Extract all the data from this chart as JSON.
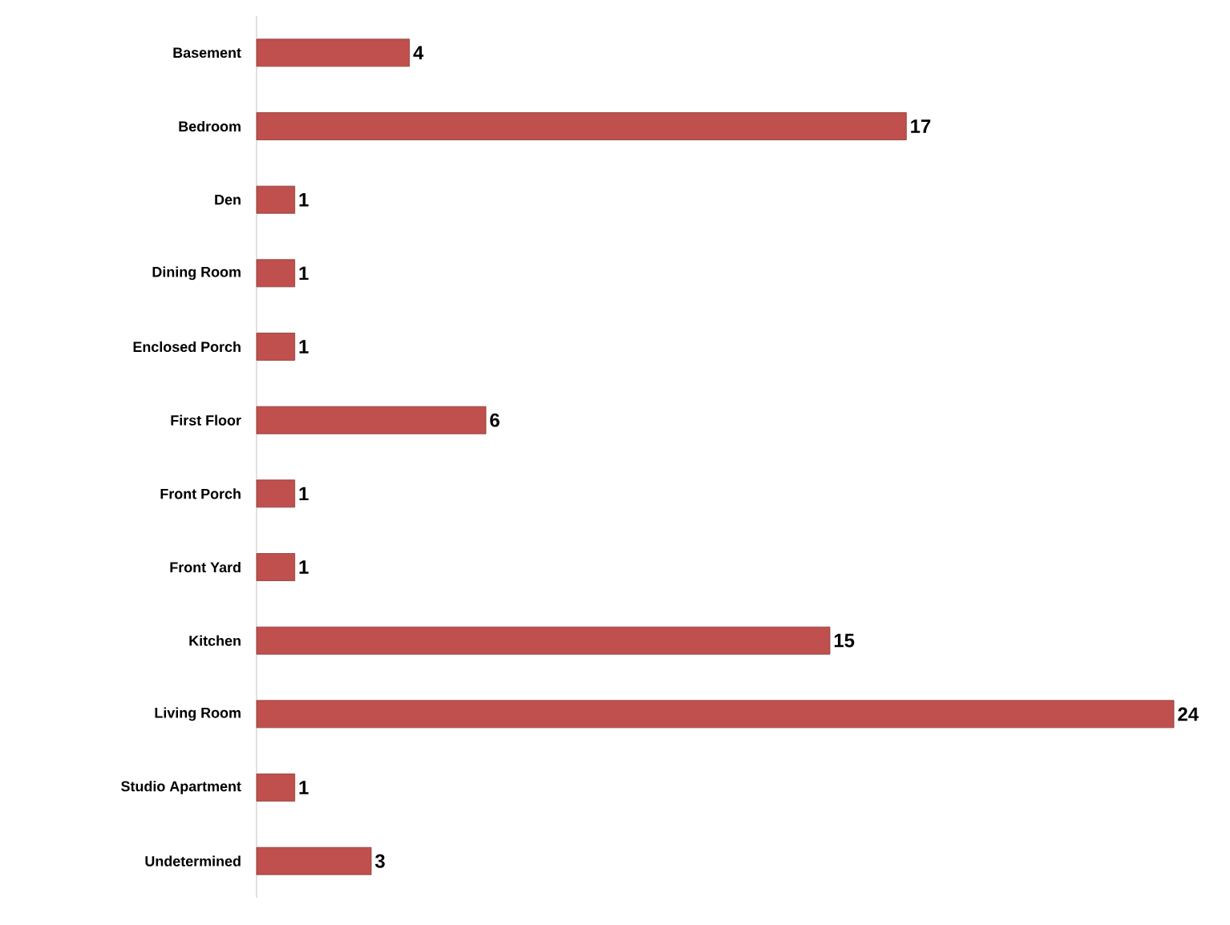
{
  "chart_data": {
    "type": "bar",
    "orientation": "horizontal",
    "data_labels": true,
    "color": "#c0504d",
    "categories": [
      "Basement",
      "Bedroom",
      "Den",
      "Dining Room",
      "Enclosed Porch",
      "First Floor",
      "Front Porch",
      "Front Yard",
      "Kitchen",
      "Living Room",
      "Studio Apartment",
      "Undetermined"
    ],
    "values": [
      4,
      17,
      1,
      1,
      1,
      6,
      1,
      1,
      15,
      24,
      1,
      3
    ]
  }
}
